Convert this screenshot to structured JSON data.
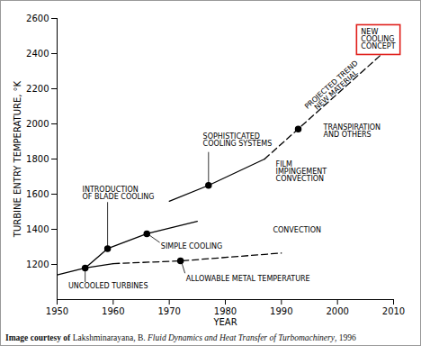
{
  "chart_data": {
    "type": "line",
    "x_label": "YEAR",
    "y_label": "TURBINE ENTRY TEMPERATURE, °K",
    "xlim": [
      1950,
      2010
    ],
    "xticks": [
      1950,
      1960,
      1970,
      1980,
      1990,
      2000,
      2010
    ],
    "ylim": [
      1000,
      2600
    ],
    "yticks": [
      1200,
      1400,
      1600,
      1800,
      2000,
      2200,
      2400,
      2600
    ],
    "grid": false,
    "series": [
      {
        "type": "line",
        "line_style": "solid",
        "color": "#000000",
        "x": [
          1950,
          1955,
          1959
        ],
        "values": [
          1140,
          1180,
          1290
        ]
      },
      {
        "type": "line",
        "line_style": "solid",
        "color": "#000000",
        "x": [
          1955,
          1960
        ],
        "values": [
          1180,
          1205
        ]
      },
      {
        "type": "line",
        "line_style": "dashed",
        "color": "#000000",
        "x": [
          1960,
          1972,
          1990
        ],
        "values": [
          1205,
          1220,
          1265
        ]
      },
      {
        "type": "line",
        "line_style": "solid",
        "color": "#000000",
        "x": [
          1959,
          1966,
          1975
        ],
        "values": [
          1290,
          1375,
          1445
        ]
      },
      {
        "type": "line",
        "line_style": "solid",
        "color": "#000000",
        "x": [
          1970,
          1977,
          1987
        ],
        "values": [
          1560,
          1650,
          1800
        ]
      },
      {
        "type": "line",
        "line_style": "dashed",
        "color": "#000000",
        "x": [
          1987,
          2008
        ],
        "values": [
          1800,
          2400
        ],
        "label": "PROJECTED TREND\nNEW MATERIAL"
      },
      {
        "type": "scatter",
        "marker": "circle",
        "color": "#000000",
        "x": [
          1955,
          1959,
          1966,
          1977,
          1972,
          1993
        ],
        "values": [
          1180,
          1290,
          1375,
          1650,
          1220,
          1971
        ]
      }
    ],
    "annotations": [
      {
        "text": "UNCOOLED TURBINES",
        "x": 1952,
        "y": 1075,
        "arrow": {
          "from": [
            1955,
            1100
          ],
          "to": [
            1955,
            1172
          ]
        }
      },
      {
        "text": "INTRODUCTION\nOF BLADE COOLING",
        "x": 1954.5,
        "y": 1605,
        "arrow": {
          "from": [
            1959,
            1555
          ],
          "to": [
            1959,
            1300
          ]
        }
      },
      {
        "text": "SIMPLE COOLING",
        "x": 1968.5,
        "y": 1305,
        "arrow": {
          "from": [
            1968.3,
            1325
          ],
          "to": [
            1966.3,
            1370
          ]
        }
      },
      {
        "text": "SOPHISTICATED\nCOOLING SYSTEMS",
        "x": 1976,
        "y": 1908,
        "arrow": {
          "from": [
            1977,
            1840
          ],
          "to": [
            1977,
            1660
          ]
        }
      },
      {
        "text": "ALLOWABLE METAL TEMPERATURE",
        "x": 1973,
        "y": 1120,
        "arrow": {
          "from": [
            1972.8,
            1150
          ],
          "to": [
            1972.2,
            1212
          ]
        }
      },
      {
        "text": "CONVECTION",
        "x": 1988.5,
        "y": 1395
      },
      {
        "text": "FILM\nIMPINGEMENT\nCONVECTION",
        "x": 1989,
        "y": 1728
      },
      {
        "text": "TRANSPIRATION\nAND OTHERS",
        "x": 1997.5,
        "y": 1960
      },
      {
        "text": "NEW\nCOOLING\nCONCEPT",
        "x": 2004.2,
        "y": 2480,
        "color": "#e0201c"
      }
    ],
    "caption": [
      {
        "text": "Image courtesy of ",
        "style": "bold"
      },
      {
        "text": "Lakshminarayana, B. ",
        "style": "normal"
      },
      {
        "text": "Fluid Dynamics and Heat Transfer of Turbomachinery",
        "style": "italic"
      },
      {
        "text": ", 1996",
        "style": "normal"
      }
    ]
  }
}
